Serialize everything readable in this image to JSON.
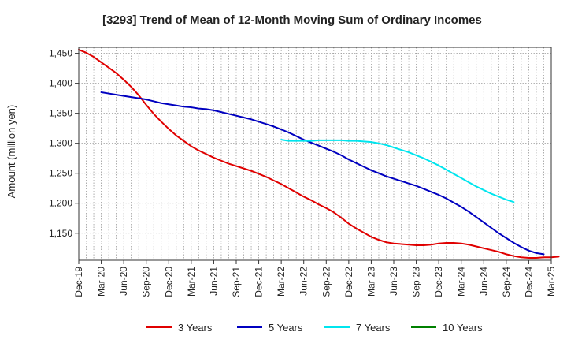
{
  "chart_data": {
    "type": "line",
    "title": "[3293]  Trend of Mean of 12-Month Moving Sum of Ordinary Incomes",
    "xlabel": "",
    "ylabel": "Amount (million yen)",
    "ylim": [
      1105,
      1460
    ],
    "yticks": [
      1150,
      1200,
      1250,
      1300,
      1350,
      1400,
      1450
    ],
    "ytick_labels": [
      "1,150",
      "1,200",
      "1,250",
      "1,300",
      "1,350",
      "1,400",
      "1,450"
    ],
    "x_start": "Dec-19",
    "x_end": "Mar-25",
    "x_tick_labels": [
      "Dec-19",
      "Mar-20",
      "Jun-20",
      "Sep-20",
      "Dec-20",
      "Mar-21",
      "Jun-21",
      "Sep-21",
      "Dec-21",
      "Mar-22",
      "Jun-22",
      "Sep-22",
      "Dec-22",
      "Mar-23",
      "Jun-23",
      "Sep-23",
      "Dec-23",
      "Mar-24",
      "Jun-24",
      "Sep-24",
      "Dec-24",
      "Mar-25"
    ],
    "grid": true,
    "legend_position": "bottom",
    "series": [
      {
        "name": "3 Years",
        "color": "#e00000",
        "start_month": 0,
        "values": [
          1456,
          1451,
          1444,
          1435,
          1426,
          1417,
          1406,
          1394,
          1380,
          1364,
          1349,
          1336,
          1324,
          1313,
          1304,
          1295,
          1288,
          1282,
          1276,
          1271,
          1266,
          1262,
          1258,
          1254,
          1249,
          1244,
          1238,
          1232,
          1225,
          1218,
          1211,
          1205,
          1198,
          1192,
          1185,
          1176,
          1166,
          1158,
          1151,
          1144,
          1139,
          1135,
          1133,
          1132,
          1131,
          1130,
          1130,
          1131,
          1133,
          1134,
          1134,
          1133,
          1131,
          1128,
          1125,
          1122,
          1119,
          1115,
          1112,
          1110,
          1109,
          1109,
          1110,
          1110,
          1111
        ]
      },
      {
        "name": "5 Years",
        "color": "#0000c0",
        "start_month": 3,
        "values": [
          1385,
          1383,
          1381,
          1379,
          1377,
          1375,
          1373,
          1370,
          1367,
          1365,
          1363,
          1361,
          1360,
          1358,
          1357,
          1355,
          1352,
          1349,
          1346,
          1343,
          1340,
          1336,
          1332,
          1328,
          1323,
          1318,
          1312,
          1306,
          1301,
          1296,
          1291,
          1286,
          1280,
          1273,
          1267,
          1261,
          1255,
          1250,
          1245,
          1241,
          1237,
          1233,
          1229,
          1224,
          1219,
          1214,
          1208,
          1201,
          1194,
          1186,
          1177,
          1168,
          1159,
          1150,
          1142,
          1134,
          1127,
          1121,
          1117,
          1115
        ]
      },
      {
        "name": "7 Years",
        "color": "#00e5ee",
        "start_month": 27,
        "values": [
          1306,
          1304,
          1304,
          1304,
          1304,
          1305,
          1305,
          1305,
          1305,
          1304,
          1304,
          1303,
          1302,
          1300,
          1297,
          1293,
          1289,
          1285,
          1280,
          1275,
          1269,
          1263,
          1256,
          1249,
          1242,
          1235,
          1228,
          1222,
          1216,
          1211,
          1206,
          1202
        ]
      },
      {
        "name": "10 Years",
        "color": "#008000",
        "start_month": 0,
        "values": []
      }
    ]
  }
}
